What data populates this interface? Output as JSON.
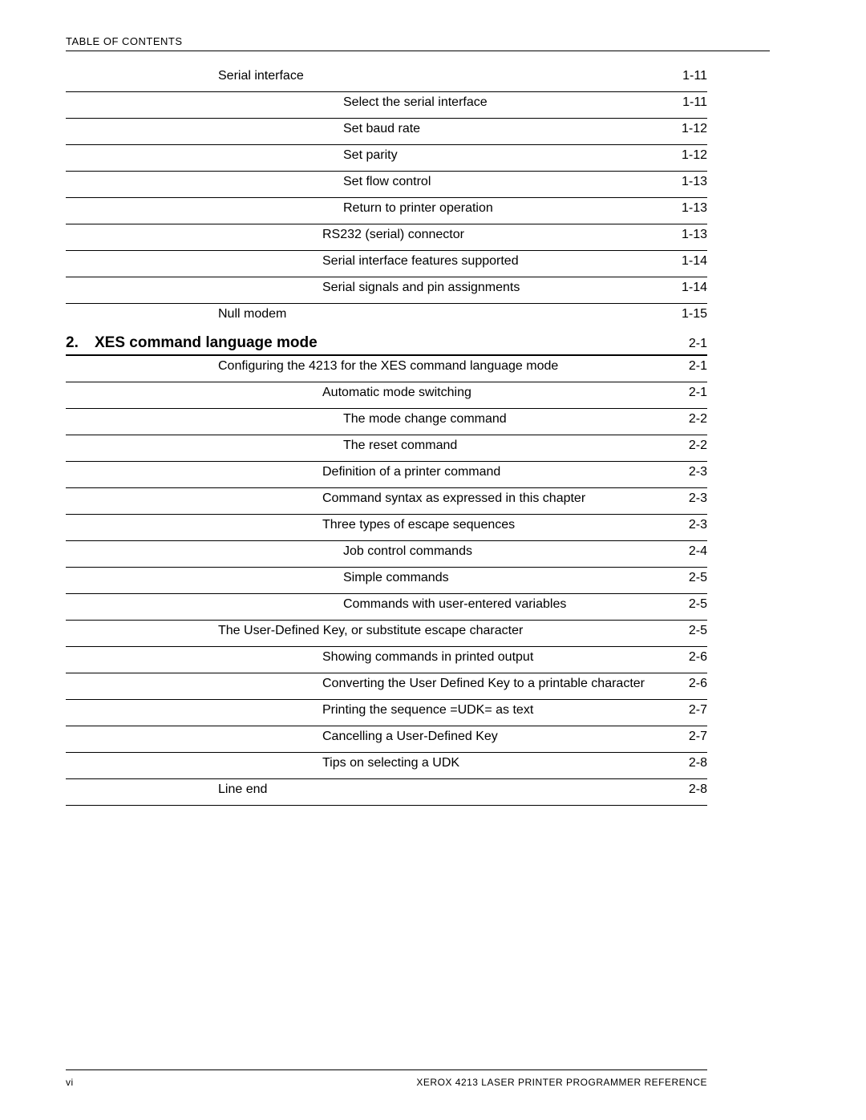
{
  "header": "TABLE OF CONTENTS",
  "footer_left": "vi",
  "footer_right": "XEROX 4213 LASER PRINTER PROGRAMMER REFERENCE",
  "chapter": {
    "num": "2.",
    "title": "XES command language mode",
    "page": "2-1"
  },
  "rows": [
    {
      "indent": 1,
      "label": "Serial interface",
      "page": "1-11"
    },
    {
      "indent": 3,
      "label": "Select the serial interface",
      "page": "1-11"
    },
    {
      "indent": 3,
      "label": "Set baud rate",
      "page": "1-12"
    },
    {
      "indent": 3,
      "label": "Set parity",
      "page": "1-12"
    },
    {
      "indent": 3,
      "label": "Set flow control",
      "page": "1-13"
    },
    {
      "indent": 3,
      "label": "Return to printer operation",
      "page": "1-13"
    },
    {
      "indent": 2,
      "label": "RS232 (serial) connector",
      "page": "1-13"
    },
    {
      "indent": 2,
      "label": "Serial interface features supported",
      "page": "1-14"
    },
    {
      "indent": 2,
      "label": "Serial signals and pin assignments",
      "page": "1-14"
    },
    {
      "indent": 1,
      "label": "Null modem",
      "page": "1-15",
      "noborder": true
    },
    {
      "chapter": true
    },
    {
      "indent": 1,
      "label": "Configuring the 4213 for the XES command language mode",
      "page": "2-1"
    },
    {
      "indent": 2,
      "label": "Automatic mode switching",
      "page": "2-1"
    },
    {
      "indent": 3,
      "label": "The mode change command",
      "page": "2-2"
    },
    {
      "indent": 3,
      "label": "The reset command",
      "page": "2-2"
    },
    {
      "indent": 2,
      "label": "Definition of a printer command",
      "page": "2-3"
    },
    {
      "indent": 2,
      "label": "Command syntax as expressed in this chapter",
      "page": "2-3"
    },
    {
      "indent": 2,
      "label": "Three types of escape sequences",
      "page": "2-3"
    },
    {
      "indent": 3,
      "label": "Job control commands",
      "page": "2-4"
    },
    {
      "indent": 3,
      "label": "Simple commands",
      "page": "2-5"
    },
    {
      "indent": 3,
      "label": "Commands with user-entered variables",
      "page": "2-5"
    },
    {
      "indent": 1,
      "label": "The User-Defined Key, or substitute escape character",
      "page": "2-5"
    },
    {
      "indent": 2,
      "label": "Showing commands in printed output",
      "page": "2-6"
    },
    {
      "indent": 2,
      "label": "Converting the User Defined Key to a printable character",
      "page": "2-6"
    },
    {
      "indent": 2,
      "label": "Printing the sequence =UDK= as text",
      "page": "2-7"
    },
    {
      "indent": 2,
      "label": "Cancelling a User-Defined Key",
      "page": "2-7"
    },
    {
      "indent": 2,
      "label": "Tips on selecting a UDK",
      "page": "2-8"
    },
    {
      "indent": 1,
      "label": "Line end",
      "page": "2-8"
    }
  ]
}
